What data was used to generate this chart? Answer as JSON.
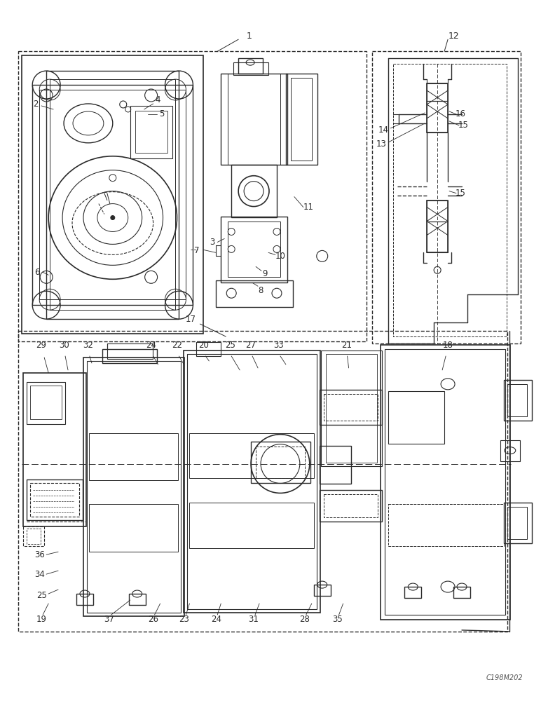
{
  "bg_color": "#ffffff",
  "line_color": "#2a2a2a",
  "fig_width": 7.72,
  "fig_height": 10.0,
  "watermark": "C198M202"
}
